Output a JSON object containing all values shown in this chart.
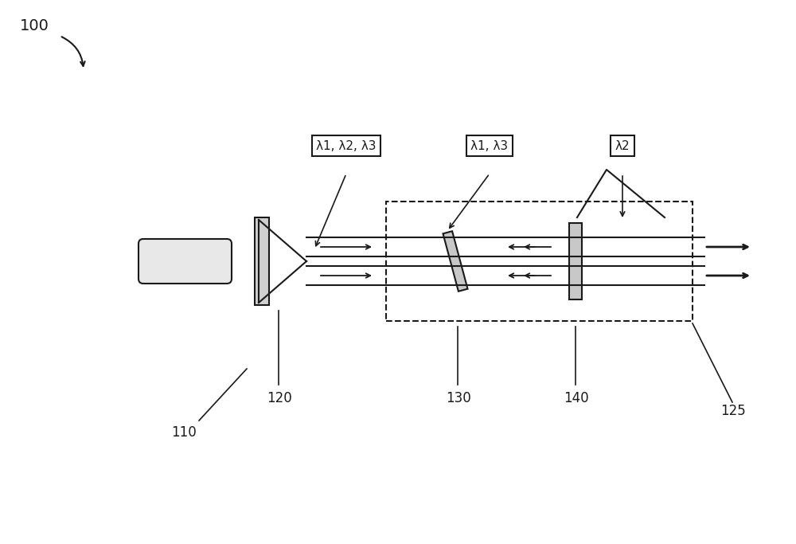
{
  "bg_color": "#ffffff",
  "line_color": "#1a1a1a",
  "fig_label": "100",
  "label_110": "110",
  "label_120": "120",
  "label_125": "125",
  "label_130": "130",
  "label_140": "140",
  "box1_text": "λ1, λ2, λ3",
  "box2_text": "λ1, λ3",
  "box3_text": "λ2"
}
